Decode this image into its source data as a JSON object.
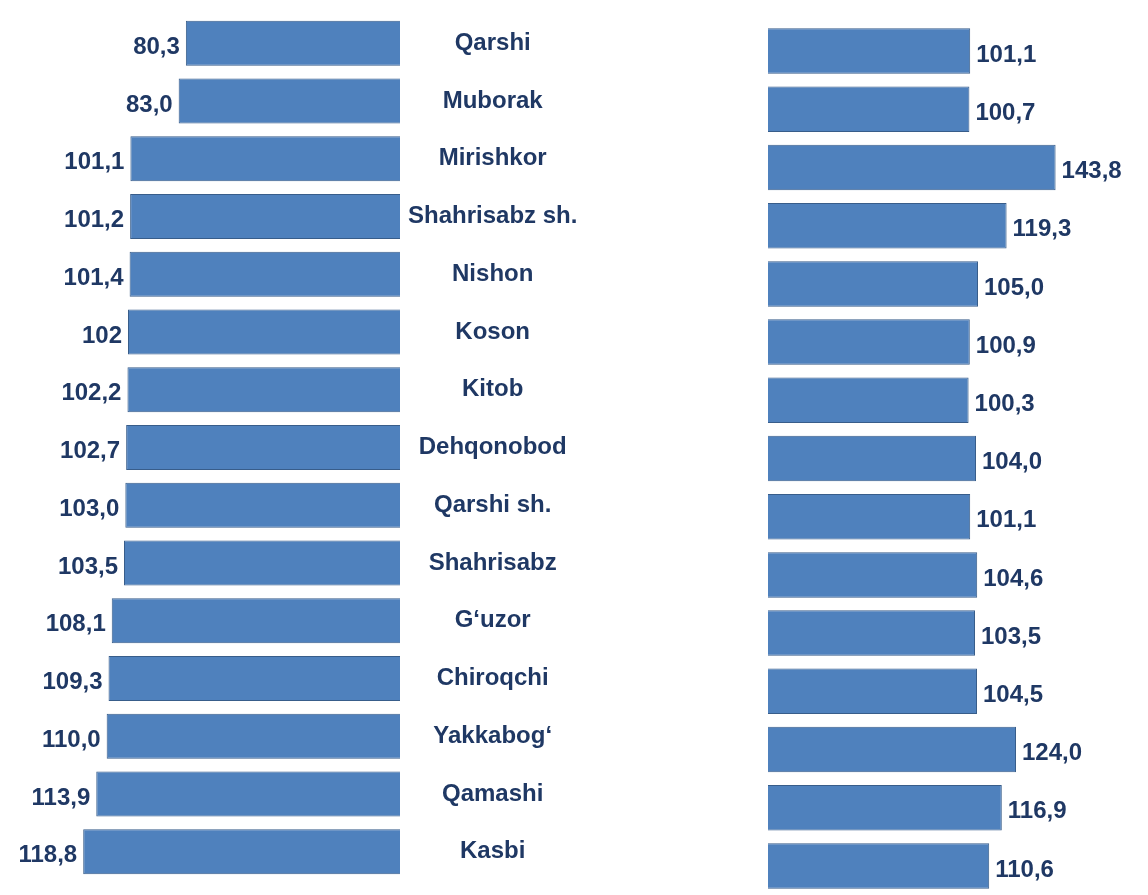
{
  "chart_data": [
    {
      "type": "bar",
      "orientation": "horizontal",
      "categories": [
        "Qarshi",
        "Muborak",
        "Mirishkor",
        "Shahrisabz sh.",
        "Nishon",
        "Koson",
        "Kitob",
        "Dehqonobod",
        "Qarshi sh.",
        "Shahrisabz",
        "G‘uzor",
        "Chiroqchi",
        "Yakkabog‘",
        "Qamashi",
        "Kasbi"
      ],
      "values": [
        80.3,
        83.0,
        101.1,
        101.2,
        101.4,
        102,
        102.2,
        102.7,
        103.0,
        103.5,
        108.1,
        109.3,
        110.0,
        113.9,
        118.8
      ],
      "value_labels": [
        "80,3",
        "83,0",
        "101,1",
        "101,2",
        "101,4",
        "102",
        "102,2",
        "102,7",
        "103,0",
        "103,5",
        "108,1",
        "109,3",
        "110,0",
        "113,9",
        "118,8"
      ],
      "color": "#4f81bd",
      "tick_labels": "y",
      "legend": false
    },
    {
      "type": "bar",
      "orientation": "horizontal",
      "categories": [
        null,
        null,
        null,
        null,
        null,
        null,
        null,
        null,
        null,
        null,
        null,
        null,
        null,
        null,
        null
      ],
      "values": [
        101.1,
        100.7,
        143.8,
        119.3,
        105.0,
        100.9,
        100.3,
        104.0,
        101.1,
        104.6,
        103.5,
        104.5,
        124.0,
        116.9,
        110.6
      ],
      "value_labels": [
        "101,1",
        "100,7",
        "143,8",
        "119,3",
        "105,0",
        "100,9",
        "100,3",
        "104,0",
        "101,1",
        "104,6",
        "103,5",
        "104,5",
        "124,0",
        "116,9",
        "110,6"
      ],
      "color": "#4f81bd",
      "tick_labels": false,
      "legend": false
    }
  ]
}
